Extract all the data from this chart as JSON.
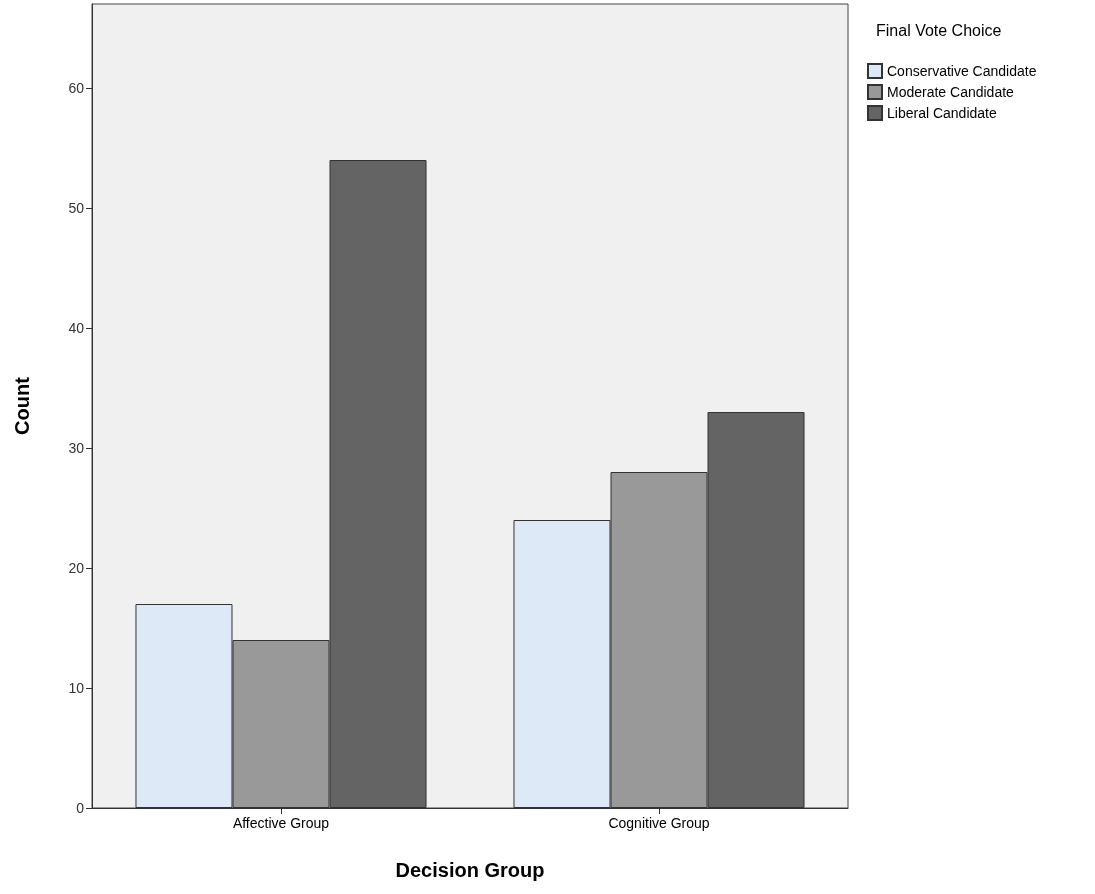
{
  "chart_data": {
    "type": "bar",
    "xlabel": "Decision Group",
    "ylabel": "Count",
    "legend_title": "Final Vote Choice",
    "categories": [
      "Affective Group",
      "Cognitive Group"
    ],
    "series": [
      {
        "name": "Conservative Candidate",
        "color": "#dde9f7",
        "values": [
          17,
          24
        ]
      },
      {
        "name": "Moderate Candidate",
        "color": "#999999",
        "values": [
          14,
          28
        ]
      },
      {
        "name": "Liberal Candidate",
        "color": "#646464",
        "values": [
          54,
          33
        ]
      }
    ],
    "ylim": [
      0,
      67
    ],
    "yticks": [
      0,
      10,
      20,
      30,
      40,
      50,
      60
    ],
    "grid": false,
    "legend": "top right"
  }
}
